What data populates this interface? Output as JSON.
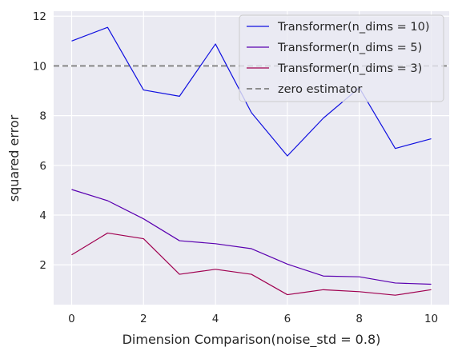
{
  "chart_data": {
    "type": "line",
    "xlabel": "Dimension Comparison(noise_std = 0.8)",
    "ylabel": "squared error",
    "x": [
      0,
      1,
      2,
      3,
      4,
      5,
      6,
      7,
      8,
      9,
      10
    ],
    "xticks": [
      0,
      2,
      4,
      6,
      8,
      10
    ],
    "yticks": [
      2,
      4,
      6,
      8,
      10,
      12
    ],
    "xlim": [
      -0.5,
      10.5
    ],
    "ylim": [
      0.4,
      12.2
    ],
    "grid": true,
    "legend_position": "top-right",
    "series": [
      {
        "name": "Transformer(n_dims = 10)",
        "color": "#1010e0",
        "style": "solid",
        "values": [
          11.0,
          11.55,
          9.03,
          8.78,
          10.88,
          8.12,
          6.38,
          7.9,
          9.12,
          6.68,
          7.07
        ]
      },
      {
        "name": "Transformer(n_dims = 5)",
        "color": "#5a00b0",
        "style": "solid",
        "values": [
          5.03,
          4.58,
          3.85,
          2.97,
          2.85,
          2.65,
          2.03,
          1.55,
          1.52,
          1.27,
          1.22
        ]
      },
      {
        "name": "Transformer(n_dims = 3)",
        "color": "#a00050",
        "style": "solid",
        "values": [
          2.4,
          3.28,
          3.05,
          1.62,
          1.82,
          1.62,
          0.8,
          1.0,
          0.92,
          0.78,
          1.0
        ]
      }
    ],
    "reference_lines": [
      {
        "name": "zero estimator",
        "color": "#808080",
        "style": "dashed",
        "y": 10.0
      }
    ]
  }
}
